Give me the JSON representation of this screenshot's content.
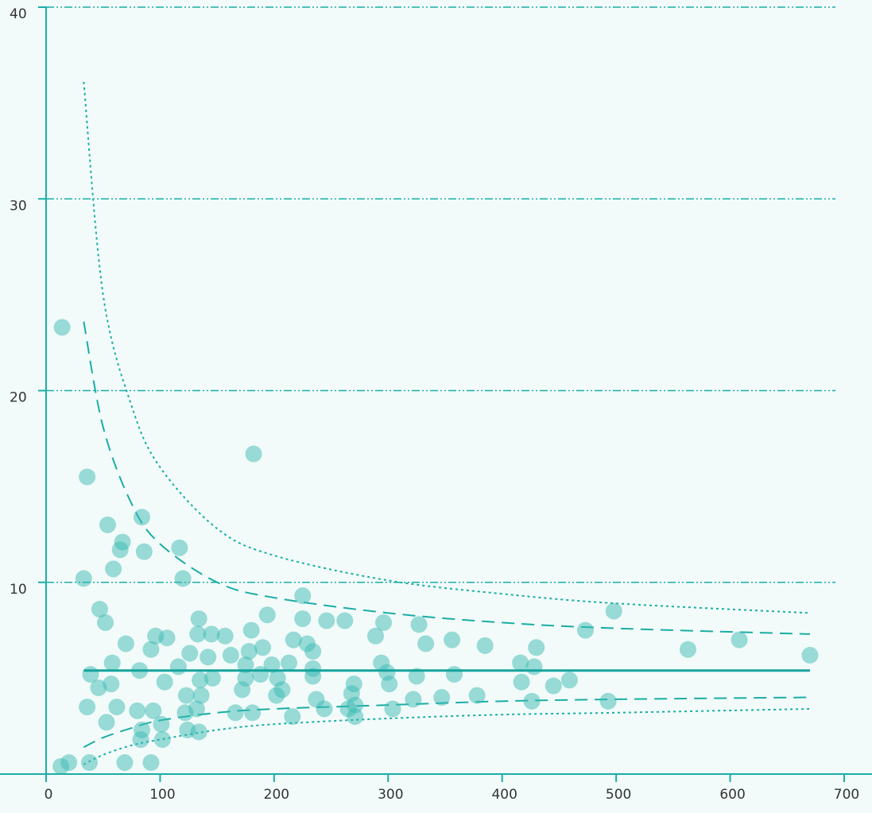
{
  "chart_data": {
    "type": "scatter",
    "title": "",
    "xlabel": "",
    "ylabel": "",
    "xlim": [
      0,
      700
    ],
    "ylim": [
      0,
      40
    ],
    "x_ticks": [
      0,
      100,
      200,
      300,
      400,
      500,
      600,
      700
    ],
    "y_ticks": [
      10,
      20,
      30,
      40
    ],
    "grid": "horizontal dash-dot lines at y ticks",
    "colors": {
      "accent": "#1aada6",
      "points": "#3cbab3",
      "background": "#f2fbf9"
    },
    "mean_line": {
      "y": 5.4,
      "x": [
        33,
        670
      ]
    },
    "funnel_limits": {
      "inner": {
        "style": "dashed",
        "upper": [
          [
            33,
            23.6
          ],
          [
            50,
            18.1
          ],
          [
            75,
            14.1
          ],
          [
            100,
            12.0
          ],
          [
            150,
            10.0
          ],
          [
            200,
            9.2
          ],
          [
            300,
            8.4
          ],
          [
            400,
            7.9
          ],
          [
            500,
            7.6
          ],
          [
            670,
            7.3
          ]
        ],
        "lower": [
          [
            33,
            1.4
          ],
          [
            50,
            1.9
          ],
          [
            75,
            2.4
          ],
          [
            100,
            2.8
          ],
          [
            150,
            3.2
          ],
          [
            200,
            3.4
          ],
          [
            300,
            3.6
          ],
          [
            400,
            3.8
          ],
          [
            500,
            3.9
          ],
          [
            670,
            4.0
          ]
        ]
      },
      "outer": {
        "style": "dotted",
        "upper": [
          [
            33,
            36.1
          ],
          [
            50,
            25.0
          ],
          [
            75,
            19.2
          ],
          [
            100,
            16.0
          ],
          [
            150,
            12.8
          ],
          [
            200,
            11.4
          ],
          [
            300,
            10.1
          ],
          [
            400,
            9.4
          ],
          [
            500,
            8.9
          ],
          [
            670,
            8.4
          ]
        ],
        "lower": [
          [
            33,
            0.5
          ],
          [
            50,
            1.0
          ],
          [
            75,
            1.5
          ],
          [
            100,
            1.8
          ],
          [
            150,
            2.3
          ],
          [
            200,
            2.6
          ],
          [
            300,
            2.9
          ],
          [
            400,
            3.1
          ],
          [
            500,
            3.2
          ],
          [
            670,
            3.4
          ]
        ]
      }
    },
    "series": [
      {
        "points": [
          [
            14,
            23.3
          ],
          [
            13,
            0.4
          ],
          [
            20,
            0.6
          ],
          [
            33,
            10.2
          ],
          [
            36,
            15.5
          ],
          [
            36,
            3.5
          ],
          [
            38,
            0.6
          ],
          [
            39,
            5.2
          ],
          [
            46,
            4.5
          ],
          [
            47,
            8.6
          ],
          [
            52,
            7.9
          ],
          [
            53,
            2.7
          ],
          [
            54,
            13.0
          ],
          [
            57,
            4.7
          ],
          [
            58,
            5.8
          ],
          [
            59,
            10.7
          ],
          [
            62,
            3.5
          ],
          [
            65,
            11.7
          ],
          [
            67,
            12.1
          ],
          [
            69,
            0.6
          ],
          [
            70,
            6.8
          ],
          [
            80,
            3.3
          ],
          [
            82,
            5.4
          ],
          [
            83,
            1.8
          ],
          [
            84,
            2.3
          ],
          [
            84,
            13.4
          ],
          [
            86,
            11.6
          ],
          [
            92,
            6.5
          ],
          [
            92,
            0.6
          ],
          [
            94,
            3.3
          ],
          [
            96,
            7.2
          ],
          [
            101,
            2.6
          ],
          [
            102,
            1.8
          ],
          [
            104,
            4.8
          ],
          [
            106,
            7.1
          ],
          [
            116,
            5.6
          ],
          [
            117,
            11.8
          ],
          [
            120,
            10.2
          ],
          [
            122,
            3.2
          ],
          [
            123,
            4.1
          ],
          [
            124,
            2.3
          ],
          [
            126,
            6.3
          ],
          [
            132,
            3.4
          ],
          [
            133,
            7.3
          ],
          [
            134,
            8.1
          ],
          [
            134,
            2.2
          ],
          [
            135,
            4.9
          ],
          [
            136,
            4.1
          ],
          [
            142,
            6.1
          ],
          [
            145,
            7.3
          ],
          [
            146,
            5.0
          ],
          [
            157,
            7.2
          ],
          [
            162,
            6.2
          ],
          [
            166,
            3.2
          ],
          [
            172,
            4.4
          ],
          [
            175,
            5.7
          ],
          [
            175,
            5.0
          ],
          [
            178,
            6.4
          ],
          [
            180,
            7.5
          ],
          [
            181,
            3.2
          ],
          [
            182,
            16.7
          ],
          [
            188,
            5.2
          ],
          [
            190,
            6.6
          ],
          [
            194,
            8.3
          ],
          [
            198,
            5.7
          ],
          [
            202,
            4.1
          ],
          [
            203,
            5.0
          ],
          [
            207,
            4.4
          ],
          [
            213,
            5.8
          ],
          [
            216,
            3.0
          ],
          [
            217,
            7.0
          ],
          [
            225,
            8.1
          ],
          [
            225,
            9.3
          ],
          [
            229,
            6.8
          ],
          [
            234,
            6.4
          ],
          [
            234,
            5.1
          ],
          [
            234,
            5.5
          ],
          [
            237,
            3.9
          ],
          [
            244,
            3.4
          ],
          [
            246,
            8.0
          ],
          [
            262,
            8.0
          ],
          [
            265,
            3.4
          ],
          [
            268,
            4.2
          ],
          [
            270,
            4.7
          ],
          [
            271,
            3.6
          ],
          [
            271,
            3.0
          ],
          [
            289,
            7.2
          ],
          [
            294,
            5.8
          ],
          [
            296,
            7.9
          ],
          [
            299,
            5.3
          ],
          [
            301,
            4.7
          ],
          [
            304,
            3.4
          ],
          [
            322,
            3.9
          ],
          [
            325,
            5.1
          ],
          [
            327,
            7.8
          ],
          [
            333,
            6.8
          ],
          [
            347,
            4.0
          ],
          [
            356,
            7.0
          ],
          [
            358,
            5.2
          ],
          [
            378,
            4.1
          ],
          [
            385,
            6.7
          ],
          [
            416,
            5.8
          ],
          [
            417,
            4.8
          ],
          [
            426,
            3.8
          ],
          [
            428,
            5.6
          ],
          [
            430,
            6.6
          ],
          [
            445,
            4.6
          ],
          [
            459,
            4.9
          ],
          [
            473,
            7.5
          ],
          [
            493,
            3.8
          ],
          [
            498,
            8.5
          ],
          [
            563,
            6.5
          ],
          [
            608,
            7.0
          ],
          [
            670,
            6.2
          ]
        ]
      }
    ]
  }
}
